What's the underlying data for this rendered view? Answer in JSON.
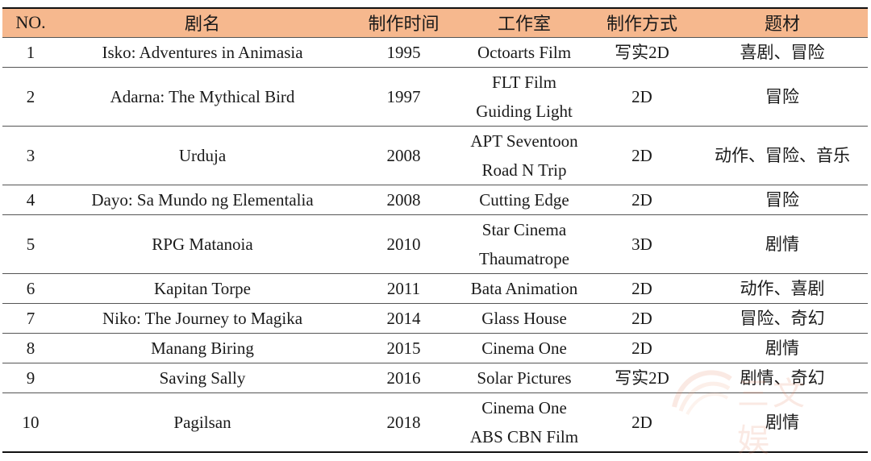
{
  "headers": [
    "NO.",
    "剧名",
    "制作时间",
    "工作室",
    "制作方式",
    "题材"
  ],
  "rows": [
    {
      "no": "1",
      "title": "Isko: Adventures in Animasia",
      "year": "1995",
      "studio": [
        "Octoarts Film"
      ],
      "method": "写实2D",
      "genre": "喜剧、冒险"
    },
    {
      "no": "2",
      "title": "Adarna: The Mythical Bird",
      "year": "1997",
      "studio": [
        "FLT Film",
        "Guiding Light"
      ],
      "method": "2D",
      "genre": "冒险"
    },
    {
      "no": "3",
      "title": "Urduja",
      "year": "2008",
      "studio": [
        "APT Seventoon",
        "Road N Trip"
      ],
      "method": "2D",
      "genre": "动作、冒险、音乐"
    },
    {
      "no": "4",
      "title": "Dayo: Sa Mundo ng Elementalia",
      "year": "2008",
      "studio": [
        "Cutting Edge"
      ],
      "method": "2D",
      "genre": "冒险"
    },
    {
      "no": "5",
      "title": "RPG Matanoia",
      "year": "2010",
      "studio": [
        "Star Cinema",
        "Thaumatrope"
      ],
      "method": "3D",
      "genre": "剧情"
    },
    {
      "no": "6",
      "title": "Kapitan Torpe",
      "year": "2011",
      "studio": [
        "Bata Animation"
      ],
      "method": "2D",
      "genre": "动作、喜剧"
    },
    {
      "no": "7",
      "title": "Niko: The Journey to Magika",
      "year": "2014",
      "studio": [
        "Glass House"
      ],
      "method": "2D",
      "genre": "冒险、奇幻"
    },
    {
      "no": "8",
      "title": "Manang Biring",
      "year": "2015",
      "studio": [
        "Cinema One"
      ],
      "method": "2D",
      "genre": "剧情"
    },
    {
      "no": "9",
      "title": "Saving Sally",
      "year": "2016",
      "studio": [
        "Solar Pictures"
      ],
      "method": "写实2D",
      "genre": "剧情、奇幻"
    },
    {
      "no": "10",
      "title": "Pagilsan",
      "year": "2018",
      "studio": [
        "Cinema One",
        "ABS CBN Film"
      ],
      "method": "2D",
      "genre": "剧情"
    }
  ],
  "watermark": {
    "text": "三文娱",
    "color": "#e98a6a"
  }
}
